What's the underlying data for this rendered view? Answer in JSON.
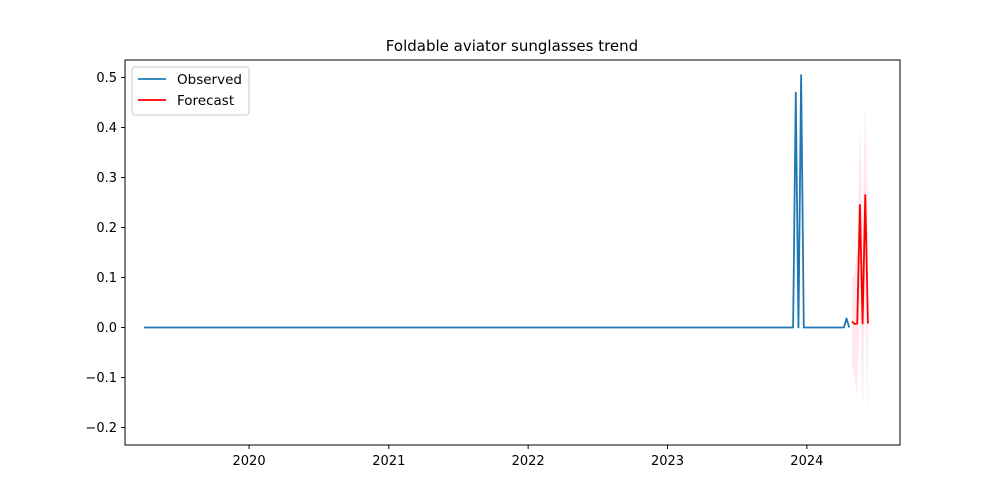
{
  "chart_data": {
    "type": "line",
    "title": "Foldable aviator sunglasses trend",
    "xlabel": "",
    "ylabel": "",
    "x_axis_type": "date",
    "xlim": [
      "2019-02-10",
      "2024-09-01"
    ],
    "ylim": [
      -0.235,
      0.535
    ],
    "x_ticks": [
      {
        "date": "2020-01-01",
        "label": "2020"
      },
      {
        "date": "2021-01-01",
        "label": "2021"
      },
      {
        "date": "2022-01-01",
        "label": "2022"
      },
      {
        "date": "2023-01-01",
        "label": "2023"
      },
      {
        "date": "2024-01-01",
        "label": "2024"
      }
    ],
    "y_ticks": [
      {
        "value": -0.2,
        "label": "−0.2"
      },
      {
        "value": -0.1,
        "label": "−0.1"
      },
      {
        "value": 0.0,
        "label": "0.0"
      },
      {
        "value": 0.1,
        "label": "0.1"
      },
      {
        "value": 0.2,
        "label": "0.2"
      },
      {
        "value": 0.3,
        "label": "0.3"
      },
      {
        "value": 0.4,
        "label": "0.4"
      },
      {
        "value": 0.5,
        "label": "0.5"
      }
    ],
    "grid": false,
    "legend": {
      "position": "top-left"
    },
    "series": [
      {
        "name": "Observed",
        "color": "#1f77b4",
        "points": [
          {
            "x": "2019-04-01",
            "y": 0.0
          },
          {
            "x": "2023-11-26",
            "y": 0.0
          },
          {
            "x": "2023-12-03",
            "y": 0.47
          },
          {
            "x": "2023-12-10",
            "y": 0.0
          },
          {
            "x": "2023-12-17",
            "y": 0.505
          },
          {
            "x": "2023-12-24",
            "y": 0.0
          },
          {
            "x": "2024-04-07",
            "y": 0.0
          },
          {
            "x": "2024-04-14",
            "y": 0.018
          },
          {
            "x": "2024-04-21",
            "y": 0.0
          }
        ]
      },
      {
        "name": "Forecast",
        "color": "#ff0000",
        "points": [
          {
            "x": "2024-04-28",
            "y": 0.012
          },
          {
            "x": "2024-05-05",
            "y": 0.007
          },
          {
            "x": "2024-05-12",
            "y": 0.008
          },
          {
            "x": "2024-05-19",
            "y": 0.245
          },
          {
            "x": "2024-05-26",
            "y": 0.008
          },
          {
            "x": "2024-06-02",
            "y": 0.265
          },
          {
            "x": "2024-06-09",
            "y": 0.008
          }
        ]
      }
    ],
    "confidence_band": {
      "color": "#ffc0cb",
      "opacity": 0.35,
      "points": [
        {
          "x": "2024-04-28",
          "lower": -0.075,
          "upper": 0.1
        },
        {
          "x": "2024-05-05",
          "lower": -0.1,
          "upper": 0.11
        },
        {
          "x": "2024-05-12",
          "lower": -0.135,
          "upper": 0.16
        },
        {
          "x": "2024-05-19",
          "lower": 0.08,
          "upper": 0.41
        },
        {
          "x": "2024-05-26",
          "lower": -0.17,
          "upper": 0.2
        },
        {
          "x": "2024-06-02",
          "lower": 0.08,
          "upper": 0.455
        },
        {
          "x": "2024-06-09",
          "lower": -0.2,
          "upper": 0.21
        }
      ]
    }
  }
}
